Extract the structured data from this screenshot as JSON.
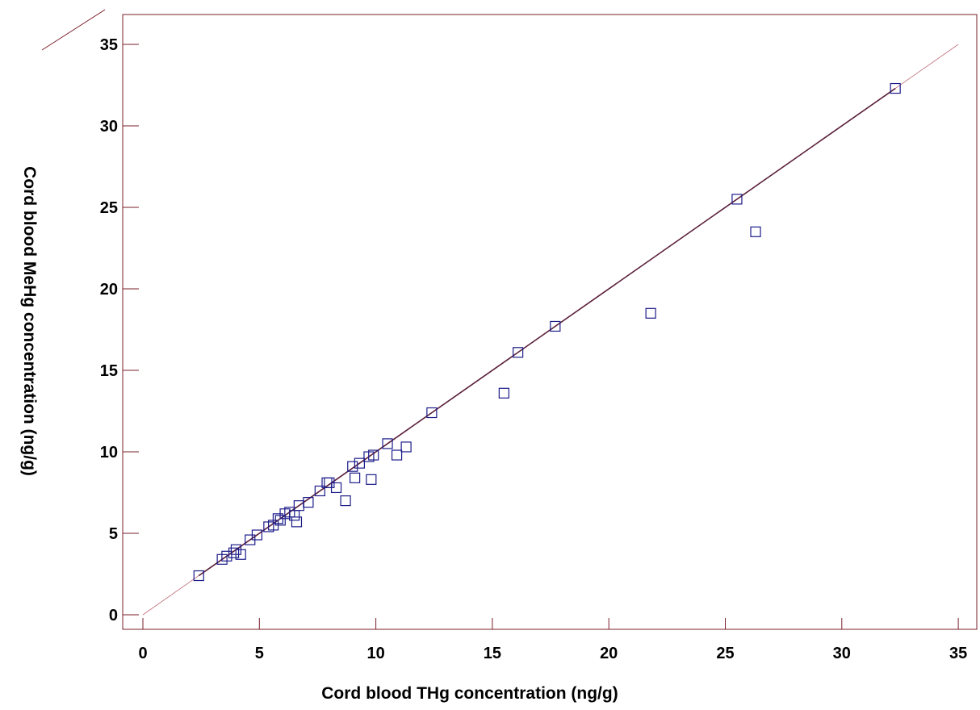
{
  "chart_data": {
    "type": "scatter",
    "xlabel": "Cord blood THg concentration (ng/g)",
    "ylabel": "Cord blood MeHg concentration  (ng/g)",
    "xlim": [
      0,
      35
    ],
    "ylim": [
      0,
      35
    ],
    "x_ticks": [
      0,
      5,
      10,
      15,
      20,
      25,
      30,
      35
    ],
    "y_ticks": [
      0,
      5,
      10,
      15,
      20,
      25,
      30,
      35
    ],
    "grid": false,
    "legend": "none",
    "marker": "open-square",
    "colors": {
      "frame": "#7a1f2a",
      "line_thin": "#c0707a",
      "line_fit": "#5a1f3a",
      "marker": "#1c1c8a"
    },
    "lines": [
      {
        "label": "identity",
        "x": [
          0,
          35
        ],
        "y": [
          0,
          35
        ]
      },
      {
        "label": "fit",
        "x": [
          2.4,
          32.3
        ],
        "y": [
          2.4,
          32.3
        ]
      }
    ],
    "points": [
      {
        "x": 2.4,
        "y": 2.4
      },
      {
        "x": 3.4,
        "y": 3.4
      },
      {
        "x": 3.6,
        "y": 3.6
      },
      {
        "x": 3.9,
        "y": 3.8
      },
      {
        "x": 4.0,
        "y": 4.0
      },
      {
        "x": 4.2,
        "y": 3.7
      },
      {
        "x": 4.6,
        "y": 4.6
      },
      {
        "x": 4.9,
        "y": 4.9
      },
      {
        "x": 5.4,
        "y": 5.4
      },
      {
        "x": 5.6,
        "y": 5.5
      },
      {
        "x": 5.8,
        "y": 5.9
      },
      {
        "x": 5.9,
        "y": 5.8
      },
      {
        "x": 6.1,
        "y": 6.2
      },
      {
        "x": 6.3,
        "y": 6.3
      },
      {
        "x": 6.5,
        "y": 6.1
      },
      {
        "x": 6.6,
        "y": 5.7
      },
      {
        "x": 6.7,
        "y": 6.7
      },
      {
        "x": 7.1,
        "y": 6.9
      },
      {
        "x": 7.6,
        "y": 7.6
      },
      {
        "x": 7.9,
        "y": 8.1
      },
      {
        "x": 8.0,
        "y": 8.1
      },
      {
        "x": 8.3,
        "y": 7.8
      },
      {
        "x": 8.7,
        "y": 7.0
      },
      {
        "x": 9.0,
        "y": 9.1
      },
      {
        "x": 9.1,
        "y": 8.4
      },
      {
        "x": 9.3,
        "y": 9.3
      },
      {
        "x": 9.7,
        "y": 9.7
      },
      {
        "x": 9.8,
        "y": 8.3
      },
      {
        "x": 9.9,
        "y": 9.8
      },
      {
        "x": 10.5,
        "y": 10.5
      },
      {
        "x": 10.9,
        "y": 9.8
      },
      {
        "x": 11.3,
        "y": 10.3
      },
      {
        "x": 12.4,
        "y": 12.4
      },
      {
        "x": 15.5,
        "y": 13.6
      },
      {
        "x": 16.1,
        "y": 16.1
      },
      {
        "x": 17.7,
        "y": 17.7
      },
      {
        "x": 21.8,
        "y": 18.5
      },
      {
        "x": 25.5,
        "y": 25.5
      },
      {
        "x": 26.3,
        "y": 23.5
      },
      {
        "x": 32.3,
        "y": 32.3
      }
    ]
  }
}
